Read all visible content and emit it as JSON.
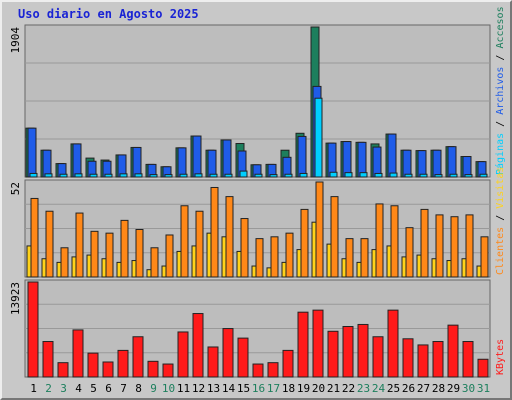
{
  "title": "Uso diario en Agosto 2025",
  "chart_data": [
    {
      "type": "bar",
      "panel": "traffic",
      "ymax_label": "1904",
      "ylim": [
        0,
        1904
      ],
      "categories": [
        "1",
        "2",
        "3",
        "4",
        "5",
        "6",
        "7",
        "8",
        "9",
        "10",
        "11",
        "12",
        "13",
        "14",
        "15",
        "16",
        "17",
        "18",
        "19",
        "20",
        "21",
        "22",
        "23",
        "24",
        "25",
        "26",
        "27",
        "28",
        "29",
        "30",
        "31"
      ],
      "weekend_days": [
        "2",
        "3",
        "9",
        "10",
        "16",
        "17",
        "23",
        "24",
        "30",
        "31"
      ],
      "series": [
        {
          "name": "Accesos",
          "color": "#1d7f5d",
          "values": [
            620,
            340,
            170,
            420,
            240,
            215,
            280,
            375,
            160,
            130,
            370,
            520,
            340,
            470,
            425,
            155,
            160,
            340,
            555,
            1904,
            430,
            450,
            440,
            420,
            545,
            340,
            335,
            340,
            385,
            260,
            195
          ]
        },
        {
          "name": "Archivos",
          "color": "#1f5ce8",
          "values": [
            620,
            340,
            170,
            420,
            200,
            200,
            280,
            375,
            160,
            130,
            370,
            520,
            340,
            470,
            330,
            155,
            160,
            250,
            515,
            1150,
            430,
            450,
            440,
            380,
            545,
            340,
            335,
            340,
            385,
            260,
            195
          ]
        },
        {
          "name": "Páginas",
          "color": "#00cfff",
          "values": [
            45,
            40,
            35,
            40,
            35,
            35,
            40,
            40,
            30,
            30,
            35,
            40,
            35,
            35,
            75,
            35,
            30,
            35,
            45,
            1000,
            60,
            55,
            55,
            45,
            50,
            35,
            35,
            30,
            35,
            30,
            35
          ]
        }
      ],
      "axis_label_parts": [
        "Páginas",
        "Archivos",
        "Accesos"
      ]
    },
    {
      "type": "bar",
      "panel": "visitors",
      "ymax_label": "52",
      "ylim": [
        0,
        52
      ],
      "series": [
        {
          "name": "Visitas",
          "color": "#ffd21a",
          "values": [
            17,
            10,
            8,
            11,
            12,
            10,
            8,
            9,
            4,
            6,
            14,
            17,
            24,
            22,
            14,
            6,
            5,
            8,
            15,
            30,
            18,
            10,
            8,
            15,
            17,
            11,
            12,
            10,
            9,
            10,
            6
          ]
        },
        {
          "name": "Clientes",
          "color": "#ff8818",
          "values": [
            43,
            36,
            16,
            35,
            25,
            24,
            31,
            26,
            16,
            23,
            39,
            36,
            49,
            44,
            32,
            21,
            22,
            24,
            37,
            52,
            44,
            21,
            21,
            40,
            39,
            27,
            37,
            34,
            33,
            34,
            22
          ]
        }
      ],
      "axis_label_parts": [
        "Clientes",
        "Visitas"
      ]
    },
    {
      "type": "bar",
      "panel": "kbytes",
      "ymax_label": "13923",
      "ylim": [
        0,
        13923
      ],
      "series": [
        {
          "name": "KBytes",
          "color": "#ff1a1a",
          "values": [
            13923,
            5200,
            2100,
            6900,
            3500,
            2200,
            3900,
            5900,
            2300,
            1900,
            6600,
            9300,
            4400,
            7100,
            5700,
            1900,
            2100,
            3900,
            9500,
            9800,
            6700,
            7400,
            7700,
            5900,
            9800,
            5600,
            4700,
            5200,
            7600,
            5200,
            2600
          ]
        }
      ],
      "axis_label_parts": [
        "KBytes"
      ]
    }
  ],
  "colors": {
    "weekday_label": "#000000",
    "weekend_label": "#1d7f5d",
    "panel_background": "#bdbdbd",
    "gridline": "#999999"
  }
}
